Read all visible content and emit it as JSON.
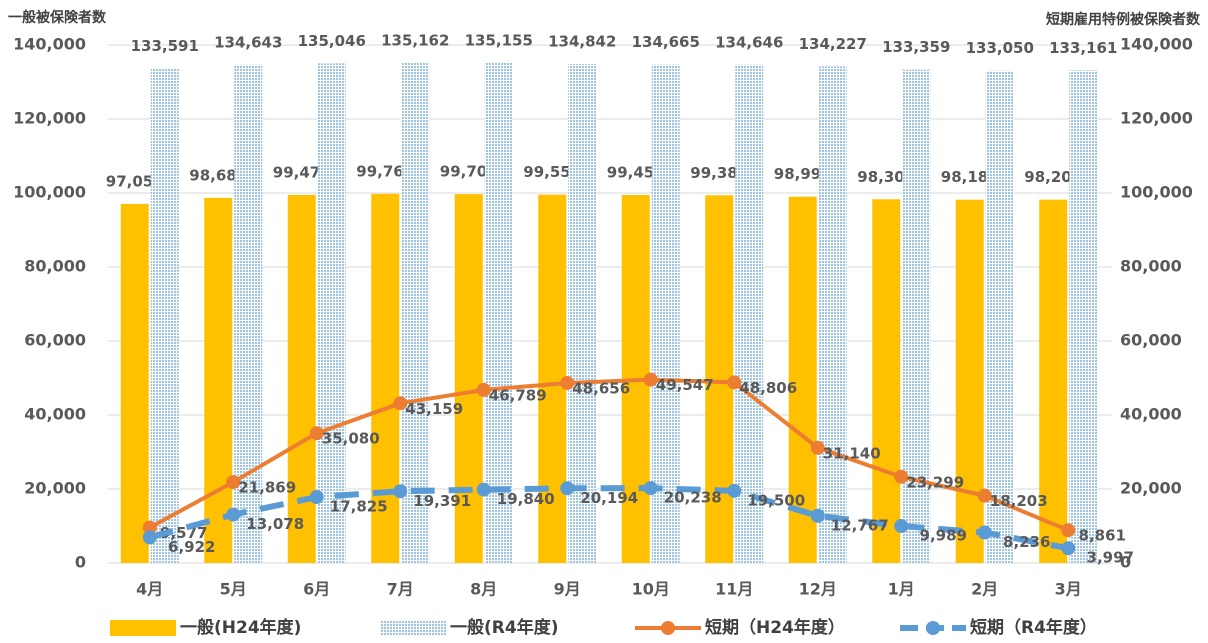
{
  "chart_data": {
    "type": "bar",
    "y_label": "一般被保険者数",
    "y2_label": "短期雇用特例被保険者数",
    "categories": [
      "4月",
      "5月",
      "6月",
      "7月",
      "8月",
      "9月",
      "10月",
      "11月",
      "12月",
      "1月",
      "2月",
      "3月"
    ],
    "series": [
      {
        "name": "一般(H24年度)",
        "type": "bar",
        "color": "#FFC000",
        "values": [
          97052,
          98684,
          99474,
          99769,
          99701,
          99559,
          99456,
          99386,
          98994,
          98301,
          98182,
          98208
        ],
        "value_labels": [
          "97,052",
          "98,684",
          "99,474",
          "99,769",
          "99,701",
          "99,559",
          "99,456",
          "99,386",
          "98,994",
          "98,301",
          "98,182",
          "98,208"
        ]
      },
      {
        "name": "一般(R4年度)",
        "type": "bar",
        "color": "#9DC3E6",
        "hatched": true,
        "values": [
          133591,
          134643,
          135046,
          135162,
          135155,
          134842,
          134665,
          134646,
          134227,
          133359,
          133050,
          133161
        ],
        "value_labels": [
          "133,591",
          "134,643",
          "135,046",
          "135,162",
          "135,155",
          "134,842",
          "134,665",
          "134,646",
          "134,227",
          "133,359",
          "133,050",
          "133,161"
        ]
      },
      {
        "name": "短期（H24年度）",
        "type": "line",
        "axis": "y2",
        "color": "#ED7D31",
        "values": [
          9577,
          21869,
          35080,
          43159,
          46789,
          48656,
          49547,
          48806,
          31140,
          23299,
          18203,
          8861
        ],
        "value_labels": [
          "9,577",
          "21,869",
          "35,080",
          "43,159",
          "46,789",
          "48,656",
          "49,547",
          "48,806",
          "31,140",
          "23,299",
          "18,203",
          "8,861"
        ]
      },
      {
        "name": "短期（R4年度）",
        "type": "line",
        "axis": "y2",
        "color": "#5B9BD5",
        "dashed": true,
        "values": [
          6922,
          13078,
          17825,
          19391,
          19840,
          20194,
          20238,
          19500,
          12767,
          9989,
          8236,
          3997
        ],
        "value_labels": [
          "6,922",
          "13,078",
          "17,825",
          "19,391",
          "19,840",
          "20,194",
          "20,238",
          "19,500",
          "12,767",
          "9,989",
          "8,236",
          "3,997"
        ]
      }
    ],
    "ylim": [
      0,
      140000
    ],
    "yticks": [
      0,
      {
        "value": 20000,
        "label": "20,000"
      },
      {
        "value": 40000,
        "label": "40,000"
      },
      {
        "value": 60000,
        "label": "60,000"
      },
      {
        "value": 80000,
        "label": "80,000"
      },
      {
        "value": 100000,
        "label": "100,000"
      },
      {
        "value": 120000,
        "label": "120,000"
      },
      {
        "value": 140000,
        "label": "140,000"
      }
    ],
    "y2lim": [
      0,
      140000
    ],
    "y2ticks": [
      0,
      {
        "value": 20000,
        "label": "20,000"
      },
      {
        "value": 40000,
        "label": "40,000"
      },
      {
        "value": 60000,
        "label": "60,000"
      },
      {
        "value": 80000,
        "label": "80,000"
      },
      {
        "value": 100000,
        "label": "100,000"
      },
      {
        "value": 120000,
        "label": "120,000"
      },
      {
        "value": 140000,
        "label": "140,000"
      }
    ],
    "grid": true,
    "legend": "bottom"
  }
}
